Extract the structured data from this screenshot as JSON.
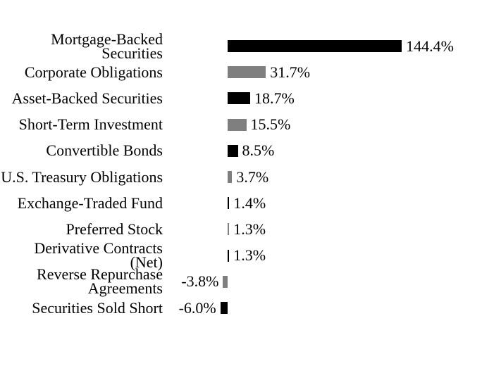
{
  "chart_data": {
    "type": "bar",
    "orientation": "horizontal",
    "title": "",
    "xlabel": "",
    "ylabel": "",
    "grid": false,
    "legend": false,
    "axis_line": false,
    "xlim": [
      -6.0,
      144.4
    ],
    "categories": [
      "Mortgage-Backed\nSecurities",
      "Corporate Obligations",
      "Asset-Backed Securities",
      "Short-Term Investment",
      "Convertible Bonds",
      "U.S. Treasury Obligations",
      "Exchange-Traded Fund",
      "Preferred Stock",
      "Derivative Contracts\n(Net)",
      "Reverse Repurchase\nAgreements",
      "Securities Sold Short"
    ],
    "values": [
      144.4,
      31.7,
      18.7,
      15.5,
      8.5,
      3.7,
      1.4,
      1.3,
      1.3,
      -3.8,
      -6.0
    ],
    "value_labels": [
      "144.4%",
      "31.7%",
      "18.7%",
      "15.5%",
      "8.5%",
      "3.7%",
      "1.4%",
      "1.3%",
      "1.3%",
      "-3.8%",
      "-6.0%"
    ],
    "bar_colors": [
      "#000000",
      "#7f7f7f",
      "#000000",
      "#7f7f7f",
      "#000000",
      "#7f7f7f",
      "#000000",
      "#7f7f7f",
      "#000000",
      "#7f7f7f",
      "#000000"
    ]
  },
  "colors": {
    "background": "#ffffff",
    "text": "#000000",
    "bar_black": "#000000",
    "bar_gray": "#7f7f7f"
  }
}
